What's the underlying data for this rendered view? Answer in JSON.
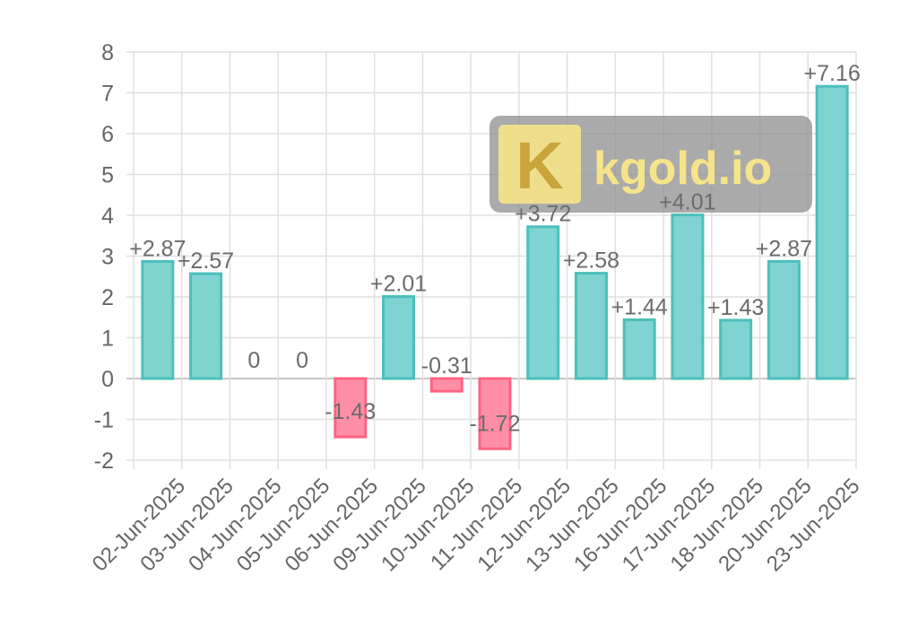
{
  "chart_data": {
    "type": "bar",
    "categories": [
      "02-Jun-2025",
      "03-Jun-2025",
      "04-Jun-2025",
      "05-Jun-2025",
      "06-Jun-2025",
      "09-Jun-2025",
      "10-Jun-2025",
      "11-Jun-2025",
      "12-Jun-2025",
      "13-Jun-2025",
      "16-Jun-2025",
      "17-Jun-2025",
      "18-Jun-2025",
      "20-Jun-2025",
      "23-Jun-2025"
    ],
    "values": [
      2.87,
      2.57,
      0,
      0,
      -1.43,
      2.01,
      -0.31,
      -1.72,
      3.72,
      2.58,
      1.44,
      4.01,
      1.43,
      2.87,
      7.16
    ],
    "data_labels": [
      "+2.87",
      "+2.57",
      "0",
      "0",
      "-1.43",
      "+2.01",
      "-0.31",
      "-1.72",
      "+3.72",
      "+2.58",
      "+1.44",
      "+4.01",
      "+1.43",
      "+2.87",
      "+7.16"
    ],
    "yticks": [
      "8",
      "7",
      "6",
      "5",
      "4",
      "3",
      "2",
      "1",
      "0",
      "-1",
      "-2"
    ],
    "ylim": [
      -2,
      8
    ],
    "grid": true,
    "colors": {
      "positive_fill": "#7fd3d0",
      "positive_stroke": "#4bc0bb",
      "negative_fill": "#ff8fa6",
      "negative_stroke": "#ff6384",
      "grid": "#e0e0e0"
    }
  },
  "watermark": {
    "logo_letter": "K",
    "text": "kgold.io"
  }
}
